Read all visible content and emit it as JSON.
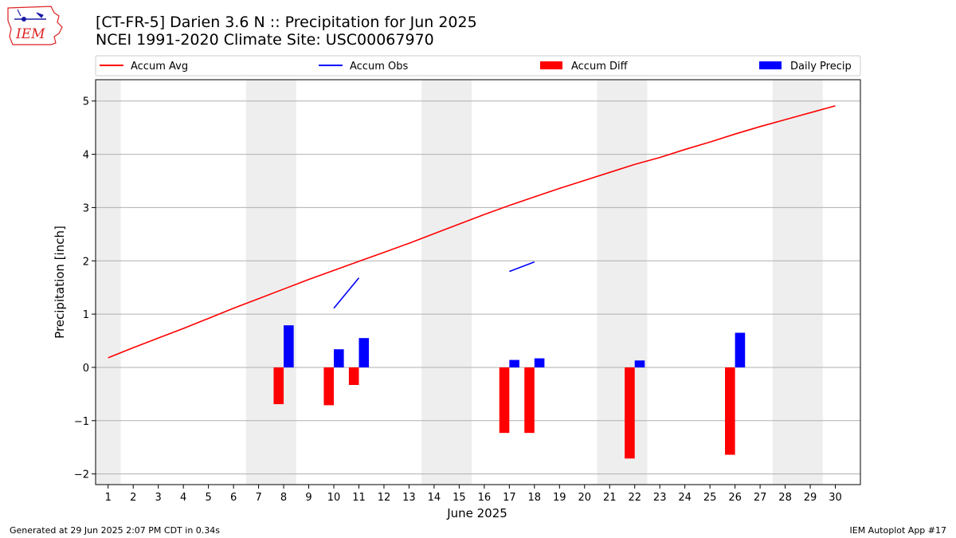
{
  "header": {
    "title_line1": "[CT-FR-5] Darien 3.6 N :: Precipitation for Jun 2025",
    "title_line2": "NCEI 1991-2020 Climate Site: USC00067970",
    "logo_text": "IEM"
  },
  "footer": {
    "left": "Generated at 29 Jun 2025 2:07 PM CDT in 0.34s",
    "right": "IEM Autoplot App #17"
  },
  "colors": {
    "accum_avg": "#ff0000",
    "accum_obs": "#0000ff",
    "accum_diff": "#ff0000",
    "daily_precip": "#0000ff",
    "weekend_shade": "#eeeeee",
    "grid": "#b0b0b0"
  },
  "chart_data": {
    "type": "bar",
    "xlabel": "June 2025",
    "ylabel": "Precipitation [inch]",
    "xlim": [
      0.5,
      31
    ],
    "ylim": [
      -2.2,
      5.4
    ],
    "x_ticks": [
      1,
      2,
      3,
      4,
      5,
      6,
      7,
      8,
      9,
      10,
      11,
      12,
      13,
      14,
      15,
      16,
      17,
      18,
      19,
      20,
      21,
      22,
      23,
      24,
      25,
      26,
      27,
      28,
      29,
      30
    ],
    "y_ticks": [
      -2,
      -1,
      0,
      1,
      2,
      3,
      4,
      5
    ],
    "y_tick_labels": [
      "−2",
      "−1",
      "0",
      "1",
      "2",
      "3",
      "4",
      "5"
    ],
    "grid": "horizontal",
    "legend_placement": "top",
    "weekend_shading": [
      [
        0.5,
        1.5
      ],
      [
        6.5,
        8.5
      ],
      [
        13.5,
        15.5
      ],
      [
        20.5,
        22.5
      ],
      [
        27.5,
        29.5
      ]
    ],
    "legend": [
      {
        "label": "Accum Avg",
        "kind": "line",
        "color": "#ff0000"
      },
      {
        "label": "Accum Obs",
        "kind": "line",
        "color": "#0000ff"
      },
      {
        "label": "Accum Diff",
        "kind": "bar",
        "color": "#ff0000"
      },
      {
        "label": "Daily Precip",
        "kind": "bar",
        "color": "#0000ff"
      }
    ],
    "series": [
      {
        "name": "Accum Avg",
        "kind": "line",
        "x": [
          1,
          2,
          3,
          4,
          5,
          6,
          7,
          8,
          9,
          10,
          11,
          12,
          13,
          14,
          15,
          16,
          17,
          18,
          19,
          20,
          21,
          22,
          23,
          24,
          25,
          26,
          27,
          28,
          29,
          30
        ],
        "values": [
          0.18,
          0.37,
          0.55,
          0.73,
          0.92,
          1.11,
          1.29,
          1.47,
          1.65,
          1.82,
          1.99,
          2.16,
          2.33,
          2.51,
          2.69,
          2.87,
          3.04,
          3.2,
          3.36,
          3.51,
          3.66,
          3.81,
          3.94,
          4.09,
          4.23,
          4.38,
          4.52,
          4.65,
          4.78,
          4.91
        ]
      },
      {
        "name": "Accum Obs",
        "kind": "line",
        "segments": [
          {
            "x": [
              10,
              11
            ],
            "values": [
              1.11,
              1.68
            ]
          },
          {
            "x": [
              17,
              18
            ],
            "values": [
              1.8,
              1.98
            ]
          }
        ]
      },
      {
        "name": "Accum Diff",
        "kind": "bar",
        "x": [
          8,
          10,
          11,
          17,
          18,
          22,
          26
        ],
        "values": [
          -0.69,
          -0.71,
          -0.33,
          -1.23,
          -1.23,
          -1.71,
          -1.64
        ]
      },
      {
        "name": "Daily Precip",
        "kind": "bar",
        "x": [
          8,
          10,
          11,
          17,
          18,
          22,
          26
        ],
        "values": [
          0.79,
          0.34,
          0.55,
          0.14,
          0.17,
          0.13,
          0.65
        ]
      }
    ]
  }
}
